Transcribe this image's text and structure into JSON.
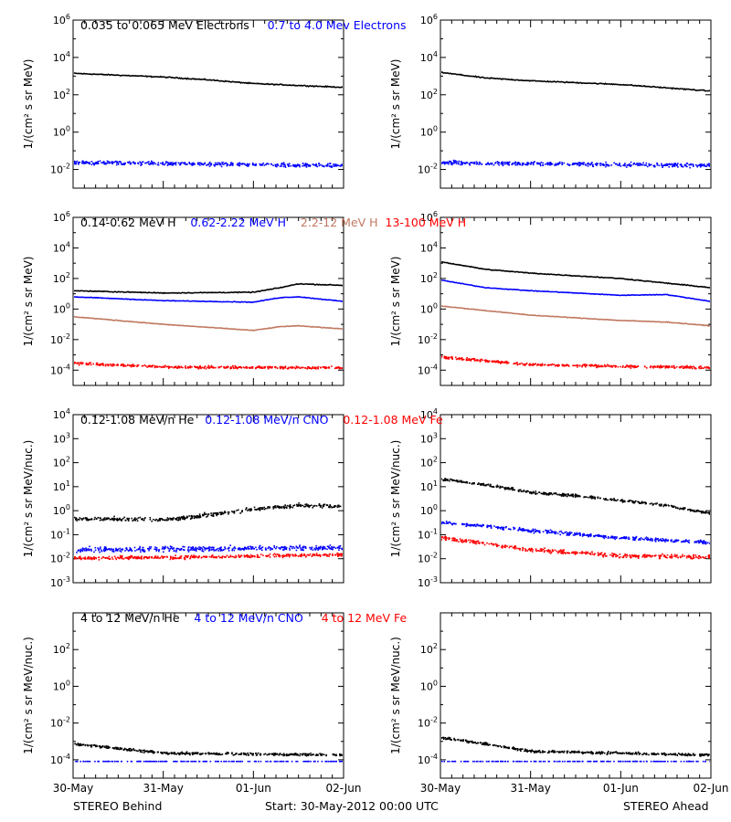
{
  "footer": {
    "left": "STEREO Behind",
    "center": "Start: 30-May-2012 00:00 UTC",
    "right": "STEREO Ahead"
  },
  "colors": {
    "black": "#000000",
    "blue": "#0000ff",
    "tan": "#c07860",
    "red": "#ff0000"
  },
  "rows": [
    {
      "id": "electrons",
      "titles": [
        {
          "text": "0.035 to 0.065 MeV Electrons",
          "color": "#000000"
        },
        {
          "text": "0.7 to 4.0 Mev Electrons",
          "color": "#0000ff"
        }
      ],
      "ylabel": "1/(cm² s sr MeV)"
    },
    {
      "id": "protons",
      "titles": [
        {
          "text": "0.14-0.62 MeV H",
          "color": "#000000"
        },
        {
          "text": "0.62-2.22 MeV H",
          "color": "#0000ff"
        },
        {
          "text": "2.2-12 MeV H",
          "color": "#c07860"
        },
        {
          "text": "13-100 MeV H",
          "color": "#ff0000"
        }
      ],
      "ylabel": "1/(cm² s sr MeV)"
    },
    {
      "id": "heavy-low",
      "titles": [
        {
          "text": "0.12-1.08 MeV/n He",
          "color": "#000000"
        },
        {
          "text": "0.12-1.08 MeV/n CNO",
          "color": "#0000ff"
        },
        {
          "text": "0.12-1.08 MeV Fe",
          "color": "#ff0000"
        }
      ],
      "ylabel": "1/(cm² s sr MeV/nuc.)"
    },
    {
      "id": "heavy-high",
      "titles": [
        {
          "text": "4 to 12 MeV/n He",
          "color": "#000000"
        },
        {
          "text": "4 to 12 MeV/n CNO",
          "color": "#0000ff"
        },
        {
          "text": "4 to 12 MeV Fe",
          "color": "#ff0000"
        }
      ],
      "ylabel": "1/(cm² s sr MeV/nuc.)"
    }
  ],
  "chart_data": [
    {
      "type": "scatter",
      "panel": "electrons-behind",
      "log_y": true,
      "xlim": [
        0,
        3
      ],
      "ylim": [
        -3,
        6
      ],
      "x_tick_labels": [
        "30-May",
        "31-May",
        "01-Jun",
        "02-Jun"
      ],
      "y_tick_labels": [
        "10^-2",
        "10^0",
        "10^2",
        "10^4",
        "10^6"
      ],
      "series": [
        {
          "name": "0.035 to 0.065 MeV Electrons",
          "color": "#000000",
          "style": "line",
          "log10": [
            [
              0,
              3.15
            ],
            [
              1,
              2.95
            ],
            [
              1.5,
              2.8
            ],
            [
              2,
              2.6
            ],
            [
              3,
              2.4
            ]
          ],
          "noise": 0.04
        },
        {
          "name": "0.7 to 4.0 Mev Electrons",
          "color": "#0000ff",
          "style": "scatter",
          "log10": [
            [
              0,
              -1.6
            ],
            [
              3,
              -1.75
            ]
          ],
          "noise": 0.15
        }
      ]
    },
    {
      "type": "scatter",
      "panel": "electrons-ahead",
      "log_y": true,
      "xlim": [
        0,
        3
      ],
      "ylim": [
        -3,
        6
      ],
      "x_tick_labels": [
        "30-May",
        "31-May",
        "01-Jun",
        "02-Jun"
      ],
      "y_tick_labels": [
        "10^-2",
        "10^0",
        "10^2",
        "10^4",
        "10^6"
      ],
      "series": [
        {
          "name": "0.035 to 0.065 MeV Electrons",
          "color": "#000000",
          "style": "line",
          "log10": [
            [
              0,
              3.2
            ],
            [
              0.5,
              2.9
            ],
            [
              1,
              2.75
            ],
            [
              2,
              2.55
            ],
            [
              3,
              2.2
            ]
          ],
          "noise": 0.04
        },
        {
          "name": "0.7 to 4.0 Mev Electrons",
          "color": "#0000ff",
          "style": "scatter",
          "log10": [
            [
              0,
              -1.6
            ],
            [
              3,
              -1.75
            ]
          ],
          "noise": 0.15
        }
      ]
    },
    {
      "type": "scatter",
      "panel": "protons-behind",
      "log_y": true,
      "xlim": [
        0,
        3
      ],
      "ylim": [
        -5,
        6
      ],
      "x_tick_labels": [
        "30-May",
        "31-May",
        "01-Jun",
        "02-Jun"
      ],
      "y_tick_labels": [
        "10^-4",
        "10^-2",
        "10^0",
        "10^2",
        "10^4",
        "10^6"
      ],
      "series": [
        {
          "name": "0.14-0.62 MeV H",
          "color": "#000000",
          "style": "line",
          "log10": [
            [
              0,
              1.2
            ],
            [
              1,
              1.05
            ],
            [
              2,
              1.1
            ],
            [
              2.3,
              1.4
            ],
            [
              2.5,
              1.65
            ],
            [
              3,
              1.55
            ]
          ],
          "noise": 0.04
        },
        {
          "name": "0.62-2.22 MeV H",
          "color": "#0000ff",
          "style": "line",
          "log10": [
            [
              0,
              0.8
            ],
            [
              1,
              0.55
            ],
            [
              2,
              0.45
            ],
            [
              2.3,
              0.75
            ],
            [
              2.5,
              0.8
            ],
            [
              3,
              0.5
            ]
          ],
          "noise": 0.03
        },
        {
          "name": "2.2-12 MeV H",
          "color": "#c07860",
          "style": "line",
          "log10": [
            [
              0,
              -0.5
            ],
            [
              1,
              -1.0
            ],
            [
              2,
              -1.4
            ],
            [
              2.3,
              -1.15
            ],
            [
              2.5,
              -1.1
            ],
            [
              3,
              -1.3
            ]
          ],
          "noise": 0.03
        },
        {
          "name": "13-100 MeV H",
          "color": "#ff0000",
          "style": "scatter",
          "log10": [
            [
              0,
              -3.5
            ],
            [
              1,
              -3.75
            ],
            [
              3,
              -3.8
            ]
          ],
          "noise": 0.12
        }
      ]
    },
    {
      "type": "scatter",
      "panel": "protons-ahead",
      "log_y": true,
      "xlim": [
        0,
        3
      ],
      "ylim": [
        -5,
        6
      ],
      "x_tick_labels": [
        "30-May",
        "31-May",
        "01-Jun",
        "02-Jun"
      ],
      "y_tick_labels": [
        "10^-4",
        "10^-2",
        "10^0",
        "10^2",
        "10^4",
        "10^6"
      ],
      "series": [
        {
          "name": "0.14-0.62 MeV H",
          "color": "#000000",
          "style": "line",
          "log10": [
            [
              0,
              3.1
            ],
            [
              0.5,
              2.6
            ],
            [
              1,
              2.35
            ],
            [
              2,
              2.0
            ],
            [
              3,
              1.4
            ]
          ],
          "noise": 0.04
        },
        {
          "name": "0.62-2.22 MeV H",
          "color": "#0000ff",
          "style": "line",
          "log10": [
            [
              0,
              1.9
            ],
            [
              0.5,
              1.4
            ],
            [
              1,
              1.2
            ],
            [
              2,
              0.9
            ],
            [
              2.5,
              0.95
            ],
            [
              3,
              0.5
            ]
          ],
          "noise": 0.03
        },
        {
          "name": "2.2-12 MeV H",
          "color": "#c07860",
          "style": "line",
          "log10": [
            [
              0,
              0.2
            ],
            [
              1,
              -0.4
            ],
            [
              2,
              -0.75
            ],
            [
              2.5,
              -0.85
            ],
            [
              3,
              -1.1
            ]
          ],
          "noise": 0.03
        },
        {
          "name": "13-100 MeV H",
          "color": "#ff0000",
          "style": "scatter",
          "log10": [
            [
              0,
              -3.1
            ],
            [
              1,
              -3.6
            ],
            [
              3,
              -3.8
            ]
          ],
          "noise": 0.12
        }
      ]
    },
    {
      "type": "scatter",
      "panel": "heavy-low-behind",
      "log_y": true,
      "xlim": [
        0,
        3
      ],
      "ylim": [
        -3,
        4
      ],
      "x_tick_labels": [
        "30-May",
        "31-May",
        "01-Jun",
        "02-Jun"
      ],
      "y_tick_labels": [
        "10^-3",
        "10^-2",
        "10^-1",
        "10^0",
        "10^1",
        "10^2",
        "10^3",
        "10^4"
      ],
      "series": [
        {
          "name": "0.12-1.08 MeV/n He",
          "color": "#000000",
          "style": "scatter",
          "log10": [
            [
              0,
              -0.3
            ],
            [
              1,
              -0.35
            ],
            [
              1.5,
              -0.15
            ],
            [
              2,
              0.1
            ],
            [
              2.5,
              0.25
            ],
            [
              3,
              0.2
            ]
          ],
          "noise": 0.12
        },
        {
          "name": "0.12-1.08 MeV/n CNO",
          "color": "#0000ff",
          "style": "scatter",
          "log10": [
            [
              0,
              -1.6
            ],
            [
              3,
              -1.5
            ]
          ],
          "noise": 0.15
        },
        {
          "name": "0.12-1.08 MeV Fe",
          "color": "#ff0000",
          "style": "scatter",
          "log10": [
            [
              0,
              -1.95
            ],
            [
              1.5,
              -1.9
            ],
            [
              3,
              -1.8
            ]
          ],
          "noise": 0.1
        }
      ]
    },
    {
      "type": "scatter",
      "panel": "heavy-low-ahead",
      "log_y": true,
      "xlim": [
        0,
        3
      ],
      "ylim": [
        -3,
        4
      ],
      "x_tick_labels": [
        "30-May",
        "31-May",
        "01-Jun",
        "02-Jun"
      ],
      "y_tick_labels": [
        "10^-3",
        "10^-2",
        "10^-1",
        "10^0",
        "10^1",
        "10^2",
        "10^3",
        "10^4"
      ],
      "series": [
        {
          "name": "0.12-1.08 MeV/n He",
          "color": "#000000",
          "style": "scatter",
          "log10": [
            [
              0,
              1.35
            ],
            [
              0.5,
              1.1
            ],
            [
              1,
              0.8
            ],
            [
              1.5,
              0.65
            ],
            [
              2,
              0.45
            ],
            [
              2.5,
              0.25
            ],
            [
              3,
              -0.1
            ]
          ],
          "noise": 0.08
        },
        {
          "name": "0.12-1.08 MeV/n CNO",
          "color": "#0000ff",
          "style": "scatter",
          "log10": [
            [
              0,
              -0.45
            ],
            [
              1,
              -0.8
            ],
            [
              2,
              -1.1
            ],
            [
              3,
              -1.3
            ]
          ],
          "noise": 0.1
        },
        {
          "name": "0.12-1.08 MeV Fe",
          "color": "#ff0000",
          "style": "scatter",
          "log10": [
            [
              0,
              -1.1
            ],
            [
              1,
              -1.6
            ],
            [
              2,
              -1.85
            ],
            [
              3,
              -1.9
            ]
          ],
          "noise": 0.12
        }
      ]
    },
    {
      "type": "scatter",
      "panel": "heavy-high-behind",
      "log_y": true,
      "xlim": [
        0,
        3
      ],
      "ylim": [
        -5,
        4
      ],
      "x_tick_labels": [
        "30-May",
        "31-May",
        "01-Jun",
        "02-Jun"
      ],
      "y_tick_labels": [
        "10^-4",
        "10^-2",
        "10^0",
        "10^2"
      ],
      "series": [
        {
          "name": "4 to 12 MeV/n He",
          "color": "#000000",
          "style": "scatter",
          "log10": [
            [
              0,
              -3.1
            ],
            [
              0.5,
              -3.35
            ],
            [
              1,
              -3.6
            ],
            [
              3,
              -3.7
            ]
          ],
          "noise": 0.1
        },
        {
          "name": "4 to 12 MeV/n CNO",
          "color": "#0000ff",
          "style": "scatter",
          "log10": [
            [
              0,
              -4.05
            ],
            [
              3,
              -4.05
            ]
          ],
          "noise": 0.0
        }
      ]
    },
    {
      "type": "scatter",
      "panel": "heavy-high-ahead",
      "log_y": true,
      "xlim": [
        0,
        3
      ],
      "ylim": [
        -5,
        4
      ],
      "x_tick_labels": [
        "30-May",
        "31-May",
        "01-Jun",
        "02-Jun"
      ],
      "y_tick_labels": [
        "10^-4",
        "10^-2",
        "10^0",
        "10^2"
      ],
      "series": [
        {
          "name": "4 to 12 MeV/n He",
          "color": "#000000",
          "style": "scatter",
          "log10": [
            [
              0,
              -2.75
            ],
            [
              0.5,
              -3.1
            ],
            [
              1,
              -3.5
            ],
            [
              3,
              -3.7
            ]
          ],
          "noise": 0.1
        },
        {
          "name": "4 to 12 MeV/n CNO",
          "color": "#0000ff",
          "style": "scatter",
          "log10": [
            [
              0,
              -4.05
            ],
            [
              3,
              -4.05
            ]
          ],
          "noise": 0.0
        }
      ]
    }
  ]
}
